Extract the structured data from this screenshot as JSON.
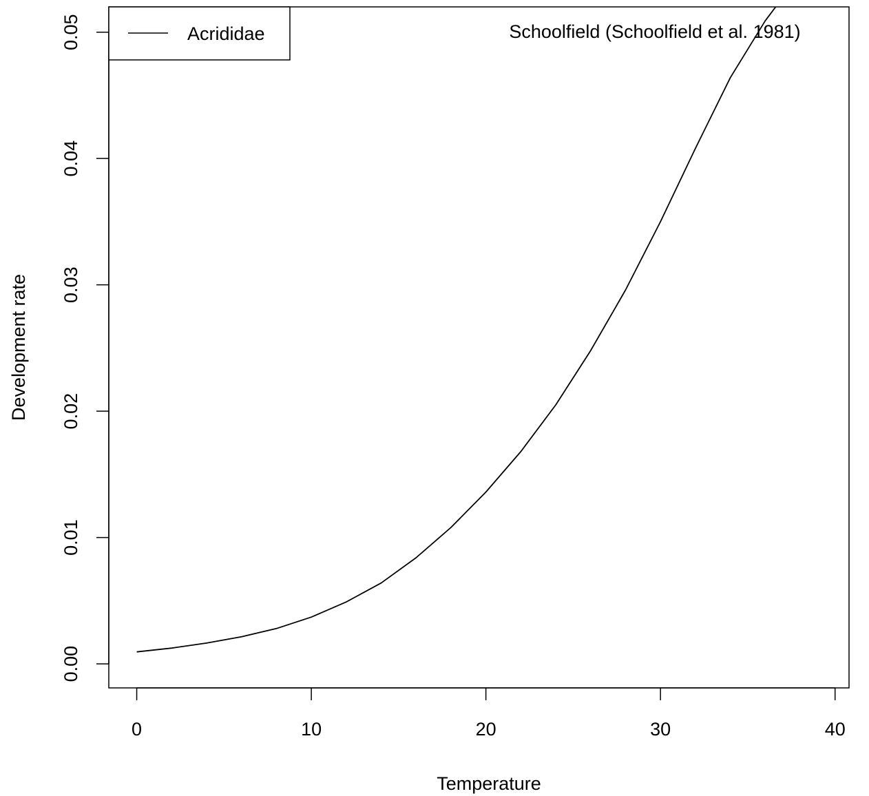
{
  "chart_data": {
    "type": "line",
    "title": "",
    "xlabel": "Temperature",
    "ylabel": "Development rate",
    "annotation": "Schoolfield (Schoolfield et al. 1981)",
    "xlim": [
      -1.6,
      40.8
    ],
    "ylim": [
      -0.0019,
      0.052
    ],
    "x_ticks": [
      0,
      10,
      20,
      30,
      40
    ],
    "x_tick_labels": [
      "0",
      "10",
      "20",
      "30",
      "40"
    ],
    "y_ticks": [
      0,
      0.01,
      0.02,
      0.03,
      0.04,
      0.05
    ],
    "y_tick_labels": [
      "0.00",
      "0.01",
      "0.02",
      "0.03",
      "0.04",
      "0.05"
    ],
    "grid": false,
    "legend": {
      "position": "top-left",
      "entries": [
        "Acrididae"
      ]
    },
    "series": [
      {
        "name": "Acrididae",
        "color": "#000000",
        "x": [
          0,
          2,
          4,
          6,
          8,
          10,
          12,
          14,
          16,
          18,
          20,
          22,
          24,
          26,
          28,
          30,
          32,
          34,
          36,
          36.6
        ],
        "y": [
          0.00095,
          0.00125,
          0.00165,
          0.00215,
          0.0028,
          0.0037,
          0.0049,
          0.0064,
          0.0084,
          0.0108,
          0.0136,
          0.0168,
          0.0205,
          0.0248,
          0.0296,
          0.035,
          0.0408,
          0.0464,
          0.0509,
          0.052
        ]
      }
    ]
  }
}
